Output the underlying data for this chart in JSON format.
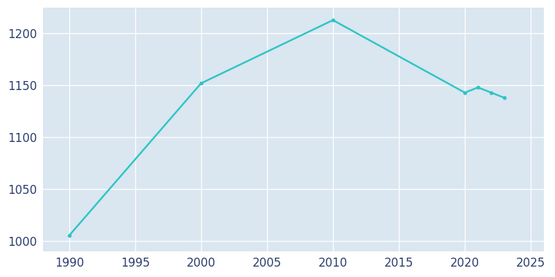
{
  "years": [
    1990,
    2000,
    2010,
    2020,
    2021,
    2022,
    2023
  ],
  "population": [
    1005,
    1152,
    1213,
    1143,
    1148,
    1143,
    1138
  ],
  "line_color": "#2DC5C5",
  "marker": "o",
  "marker_size": 3,
  "axes_background_color": "#DAE6F0",
  "figure_background_color": "#ffffff",
  "grid_color": "#ffffff",
  "xlim": [
    1988,
    2026
  ],
  "ylim": [
    990,
    1225
  ],
  "xticks": [
    1990,
    1995,
    2000,
    2005,
    2010,
    2015,
    2020,
    2025
  ],
  "yticks": [
    1000,
    1050,
    1100,
    1150,
    1200
  ],
  "tick_color": "#2d3f6e",
  "figsize": [
    8.0,
    4.0
  ],
  "dpi": 100,
  "linewidth": 1.8
}
